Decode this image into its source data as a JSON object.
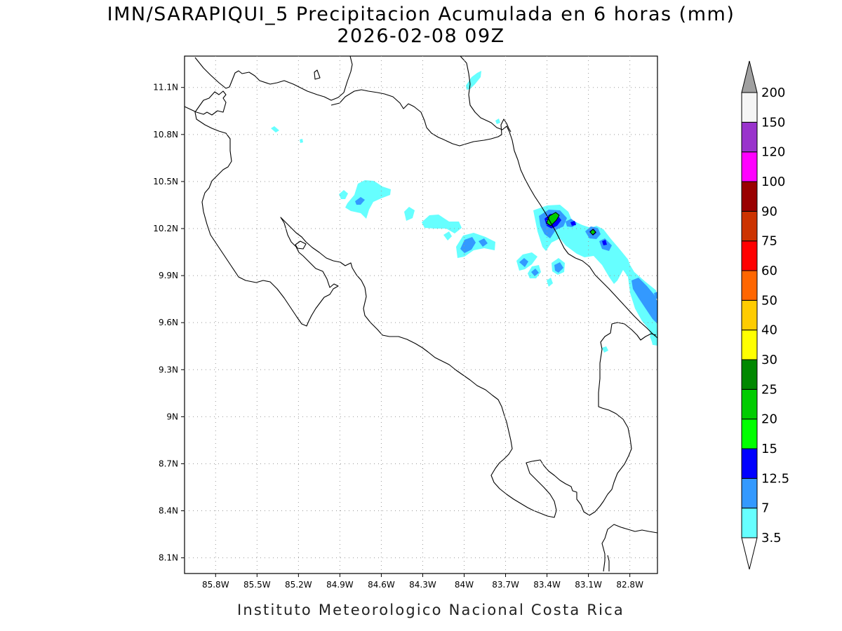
{
  "title": {
    "line1": "IMN/SARAPIQUI_5 Precipitacion Acumulada en 6 horas (mm)",
    "line2": "2026-02-08 09Z"
  },
  "credit": "Instituto Meteorologico Nacional Costa Rica",
  "map": {
    "lon_range": [
      -86.025,
      -82.6
    ],
    "lat_range": [
      8.0,
      11.3
    ],
    "grid": true
  },
  "axes": {
    "lon_ticks": [
      {
        "value": -85.8,
        "label": "85.8W"
      },
      {
        "value": -85.5,
        "label": "85.5W"
      },
      {
        "value": -85.2,
        "label": "85.2W"
      },
      {
        "value": -84.9,
        "label": "84.9W"
      },
      {
        "value": -84.6,
        "label": "84.6W"
      },
      {
        "value": -84.3,
        "label": "84.3W"
      },
      {
        "value": -84.0,
        "label": "84W"
      },
      {
        "value": -83.7,
        "label": "83.7W"
      },
      {
        "value": -83.4,
        "label": "83.4W"
      },
      {
        "value": -83.1,
        "label": "83.1W"
      },
      {
        "value": -82.8,
        "label": "82.8W"
      }
    ],
    "lat_ticks": [
      {
        "value": 8.1,
        "label": "8.1N"
      },
      {
        "value": 8.4,
        "label": "8.4N"
      },
      {
        "value": 8.7,
        "label": "8.7N"
      },
      {
        "value": 9.0,
        "label": "9N"
      },
      {
        "value": 9.3,
        "label": "9.3N"
      },
      {
        "value": 9.6,
        "label": "9.6N"
      },
      {
        "value": 9.9,
        "label": "9.9N"
      },
      {
        "value": 10.2,
        "label": "10.2N"
      },
      {
        "value": 10.5,
        "label": "10.5N"
      },
      {
        "value": 10.8,
        "label": "10.8N"
      },
      {
        "value": 11.1,
        "label": "11.1N"
      }
    ]
  },
  "colorbar": {
    "bins": [
      {
        "label": "3.5",
        "color": "#66ffff"
      },
      {
        "label": "7",
        "color": "#3399ff"
      },
      {
        "label": "12.5",
        "color": "#0000ff"
      },
      {
        "label": "15",
        "color": "#00ff00"
      },
      {
        "label": "20",
        "color": "#00cc00"
      },
      {
        "label": "25",
        "color": "#008800"
      },
      {
        "label": "30",
        "color": "#ffff00"
      },
      {
        "label": "40",
        "color": "#ffcc00"
      },
      {
        "label": "50",
        "color": "#ff6600"
      },
      {
        "label": "60",
        "color": "#ff0000"
      },
      {
        "label": "75",
        "color": "#cc3300"
      },
      {
        "label": "90",
        "color": "#990000"
      },
      {
        "label": "100",
        "color": "#ff00ff"
      },
      {
        "label": "120",
        "color": "#9933cc"
      },
      {
        "label": "150",
        "color": "#f5f5f5"
      },
      {
        "label": "200",
        "color": "#a0a0a0"
      }
    ]
  }
}
